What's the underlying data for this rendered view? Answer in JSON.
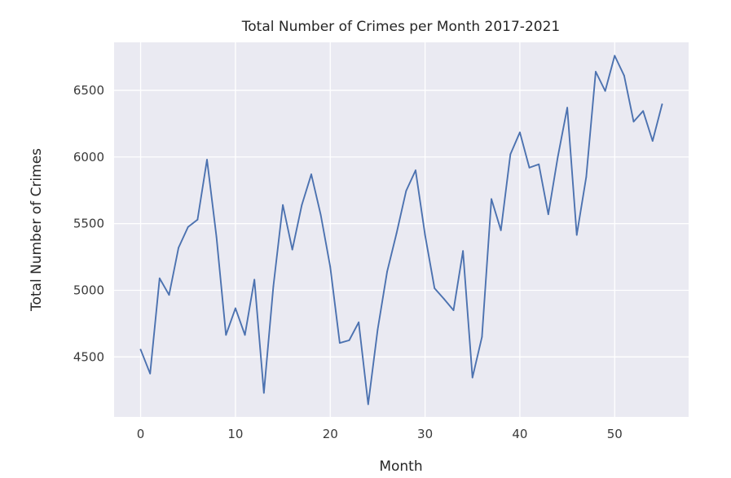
{
  "chart_data": {
    "type": "line",
    "title": "Total Number of Crimes per Month 2017-2021",
    "xlabel": "Month",
    "ylabel": "Total Number of Crimes",
    "xlim": [
      -2.8,
      57.8
    ],
    "ylim": [
      4050,
      6860
    ],
    "xticks": [
      0,
      10,
      20,
      30,
      40,
      50
    ],
    "yticks": [
      4500,
      5000,
      5500,
      6000,
      6500
    ],
    "grid": true,
    "legend": "none",
    "colors": {
      "plot_bg": "#eaeaf2",
      "grid": "#ffffff",
      "line": "#4c72b0"
    },
    "series": [
      {
        "x": [
          0,
          1,
          2,
          3,
          4,
          5,
          6,
          7,
          8,
          9,
          10,
          11,
          12,
          13,
          14,
          15,
          16,
          17,
          18,
          19,
          20,
          21,
          22,
          23,
          24,
          25,
          26,
          27,
          28,
          29,
          30,
          31,
          32,
          33,
          34,
          35,
          36,
          37,
          38,
          39,
          40,
          41,
          42,
          43,
          44,
          45,
          46,
          47,
          48,
          49,
          50,
          51,
          52,
          53,
          54,
          55
        ],
        "values": [
          4555,
          4375,
          5090,
          4965,
          5320,
          5475,
          5530,
          5980,
          5400,
          4665,
          4865,
          4665,
          5080,
          4230,
          5030,
          5640,
          5305,
          5640,
          5870,
          5565,
          5175,
          4605,
          4625,
          4760,
          4145,
          4705,
          5140,
          5430,
          5745,
          5900,
          5415,
          5015,
          4935,
          4850,
          5295,
          4345,
          4650,
          5685,
          5450,
          6020,
          6185,
          5920,
          5945,
          5570,
          6000,
          6370,
          5415,
          5850,
          6640,
          6495,
          6760,
          6610,
          6265,
          6345,
          6120,
          6395
        ]
      }
    ]
  }
}
